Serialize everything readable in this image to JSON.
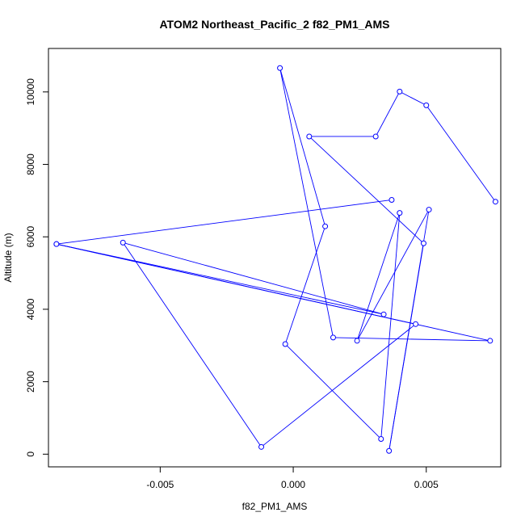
{
  "chart_data": {
    "type": "line",
    "title": "ATOM2 Northeast_Pacific_2 f82_PM1_AMS",
    "xlabel": "f82_PM1_AMS",
    "ylabel": "Altitude (m)",
    "xlim": [
      -0.0092,
      0.0078
    ],
    "ylim": [
      -350,
      11200
    ],
    "xticks": [
      -0.005,
      0.0,
      0.005
    ],
    "xtick_labels": [
      "-0.005",
      "0.000",
      "0.005"
    ],
    "yticks": [
      0,
      2000,
      4000,
      6000,
      8000,
      10000
    ],
    "ytick_labels": [
      "0",
      "2000",
      "4000",
      "6000",
      "8000",
      "10000"
    ],
    "line_color": "#0000ff",
    "marker": "open-circle",
    "grid": false,
    "series": [
      {
        "x": [
          0.0076,
          0.005,
          0.004,
          0.0031,
          0.0006,
          0.0049,
          0.0036,
          0.0051,
          0.0024,
          0.004,
          0.0033,
          -0.0003,
          0.0012,
          -0.0005,
          0.0015,
          0.0074,
          -0.0089,
          0.0034,
          -0.0064,
          -0.0012,
          0.0046,
          -0.0089,
          0.0037
        ],
        "y": [
          6970,
          9630,
          10010,
          8770,
          8770,
          5820,
          90,
          6750,
          3130,
          6660,
          420,
          3040,
          6290,
          10660,
          3220,
          3130,
          5800,
          3860,
          5840,
          200,
          3590,
          5800,
          7020
        ]
      }
    ]
  }
}
